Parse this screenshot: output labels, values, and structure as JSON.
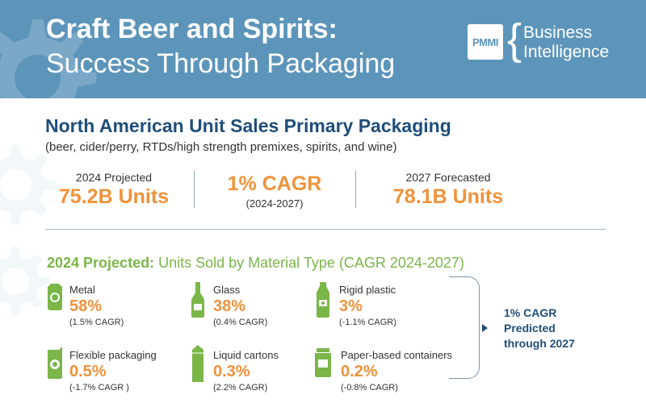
{
  "header": {
    "title_line1": "Craft Beer and Spirits:",
    "title_line2": "Success Through Packaging",
    "logo_text": "PMMI",
    "brand_line1": "Business",
    "brand_line2": "Intelligence",
    "bg_color": "#5d95ba"
  },
  "overview": {
    "title": "North American Unit Sales Primary Packaging",
    "subtitle": "(beer, cider/perry, RTDs/high strength premixes, spirits, and wine)",
    "stats": [
      {
        "label": "2024 Projected",
        "value": "75.2B Units"
      },
      {
        "value": "1% CAGR",
        "label": "(2024-2027)"
      },
      {
        "label": "2027 Forecasted",
        "value": "78.1B Units"
      }
    ]
  },
  "materials_section": {
    "title_bold": "2024 Projected:",
    "title_rest": " Units Sold by Material Type (CAGR 2024-2027)",
    "items": [
      {
        "icon": "can-icon",
        "name": "Metal",
        "percent": "58%",
        "cagr": "(1.5% CAGR)"
      },
      {
        "icon": "wine-bottle-icon",
        "name": "Glass",
        "percent": "38%",
        "cagr": "(0.4% CAGR)"
      },
      {
        "icon": "plastic-bottle-icon",
        "name": "Rigid plastic",
        "percent": "3%",
        "cagr": "(-1.1% CAGR)"
      },
      {
        "icon": "pouch-icon",
        "name": "Flexible packaging",
        "percent": "0.5%",
        "cagr": "(-1.7% CAGR )"
      },
      {
        "icon": "carton-icon",
        "name": "Liquid cartons",
        "percent": "0.3%",
        "cagr": "(2.2% CAGR)"
      },
      {
        "icon": "paper-container-icon",
        "name": "Paper-based containers",
        "percent": "0.2%",
        "cagr": "(-0.8% CAGR)"
      }
    ],
    "prediction_line1": "1% CAGR",
    "prediction_line2": "Predicted",
    "prediction_line3": "through 2027"
  },
  "colors": {
    "accent_orange": "#f0923a",
    "navy": "#1f4e79",
    "green": "#7ab648"
  }
}
